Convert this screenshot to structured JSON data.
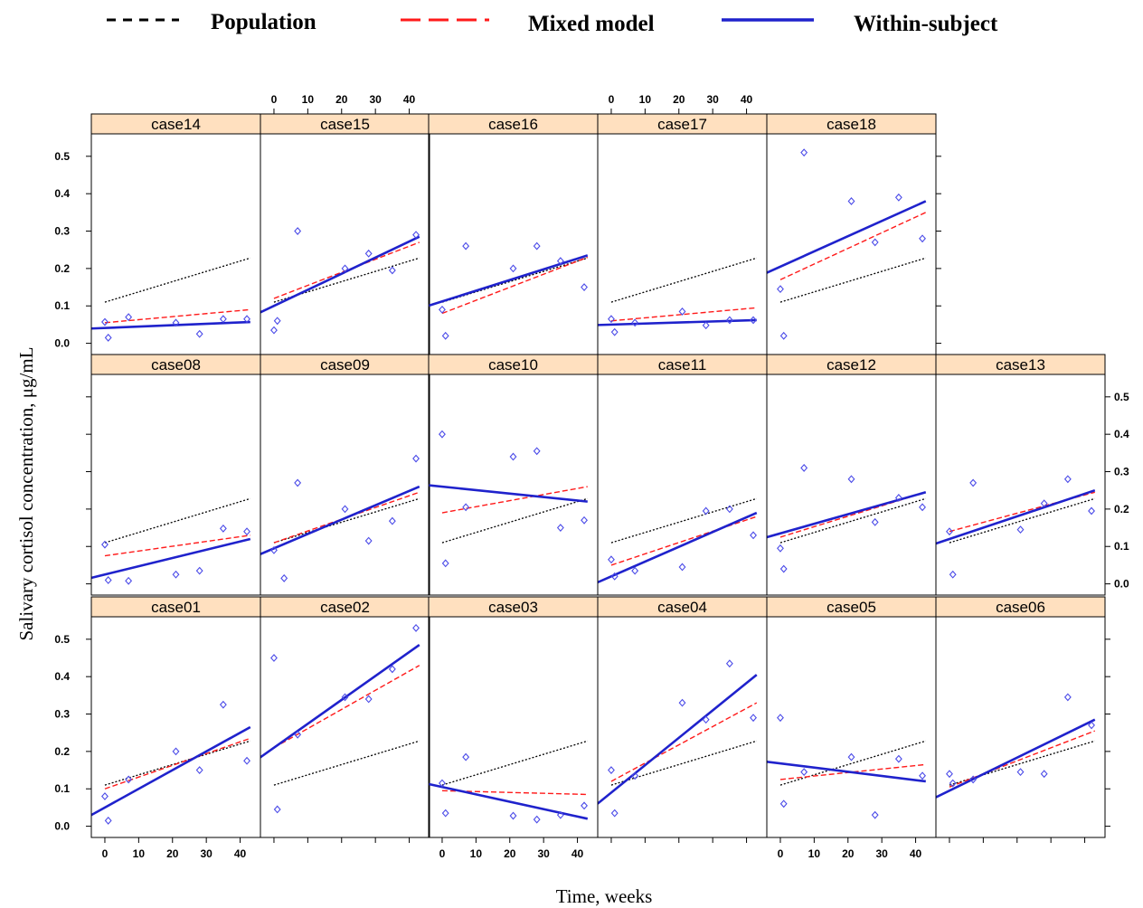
{
  "chart_data": {
    "type": "scatter",
    "layout": "lattice-panels",
    "xlabel": "Time, weeks",
    "ylabel": "Salivary cortisol concentration, μg/mL",
    "xlim": [
      -4,
      46
    ],
    "ylim": [
      -0.03,
      0.56
    ],
    "x_ticks": [
      0,
      10,
      20,
      30,
      40
    ],
    "y_ticks": [
      0.0,
      0.1,
      0.2,
      0.3,
      0.4,
      0.5
    ],
    "y_tick_labels": [
      "0.0",
      "0.1",
      "0.2",
      "0.3",
      "0.4",
      "0.5"
    ],
    "legend": {
      "placement": "top",
      "items": [
        {
          "label": "Population",
          "color": "#000000",
          "style": "short-dash",
          "text_color": "#000000"
        },
        {
          "label": "Mixed model",
          "color": "#ff1a1a",
          "style": "long-dash",
          "text_color": "#e8141b"
        },
        {
          "label": "Within-subject",
          "color": "#1f22cc",
          "style": "solid",
          "text_color": "#1a75c7"
        }
      ]
    },
    "colors": {
      "points": "#4a4ae8",
      "strip_fill": "#ffe0bf",
      "population": "#000000",
      "mixed": "#ff1a1a",
      "within": "#1f22cc"
    },
    "population_line": {
      "x": [
        0,
        43
      ],
      "y": [
        0.11,
        0.228
      ]
    },
    "panels": [
      {
        "name": "case14",
        "row": 0,
        "col": 0,
        "points": {
          "x": [
            0,
            1,
            7,
            21,
            28,
            35,
            42
          ],
          "y": [
            0.057,
            0.015,
            0.07,
            0.055,
            0.025,
            0.065,
            0.065
          ]
        },
        "mixed": [
          0.055,
          0.09
        ],
        "within": [
          0.041,
          0.057
        ]
      },
      {
        "name": "case15",
        "row": 0,
        "col": 1,
        "points": {
          "x": [
            0,
            1,
            7,
            21,
            28,
            35,
            42
          ],
          "y": [
            0.035,
            0.06,
            0.3,
            0.2,
            0.24,
            0.195,
            0.29
          ]
        },
        "mixed": [
          0.12,
          0.27
        ],
        "within": [
          0.1,
          0.285
        ]
      },
      {
        "name": "case16",
        "row": 0,
        "col": 2,
        "points": {
          "x": [
            0,
            1,
            7,
            21,
            28,
            35,
            42
          ],
          "y": [
            0.09,
            0.02,
            0.26,
            0.2,
            0.26,
            0.22,
            0.15
          ]
        },
        "mixed": [
          0.08,
          0.23
        ],
        "within": [
          0.112,
          0.235
        ]
      },
      {
        "name": "case17",
        "row": 0,
        "col": 3,
        "points": {
          "x": [
            0,
            1,
            7,
            21,
            28,
            35,
            42
          ],
          "y": [
            0.065,
            0.03,
            0.055,
            0.085,
            0.048,
            0.062,
            0.062
          ]
        },
        "mixed": [
          0.06,
          0.095
        ],
        "within": [
          0.05,
          0.062
        ]
      },
      {
        "name": "case18",
        "row": 0,
        "col": 4,
        "points": {
          "x": [
            0,
            1,
            7,
            21,
            28,
            35,
            42
          ],
          "y": [
            0.145,
            0.02,
            0.51,
            0.38,
            0.27,
            0.39,
            0.28
          ]
        },
        "mixed": [
          0.17,
          0.35
        ],
        "within": [
          0.205,
          0.38
        ]
      },
      {
        "name": "case08",
        "row": 1,
        "col": 0,
        "points": {
          "x": [
            0,
            1,
            7,
            21,
            28,
            35,
            42
          ],
          "y": [
            0.105,
            0.01,
            0.008,
            0.025,
            0.035,
            0.148,
            0.14
          ]
        },
        "mixed": [
          0.075,
          0.13
        ],
        "within": [
          0.025,
          0.12
        ]
      },
      {
        "name": "case09",
        "row": 1,
        "col": 1,
        "points": {
          "x": [
            0,
            3,
            7,
            21,
            28,
            35,
            42
          ],
          "y": [
            0.09,
            0.015,
            0.27,
            0.2,
            0.115,
            0.168,
            0.335
          ]
        },
        "mixed": [
          0.11,
          0.245
        ],
        "within": [
          0.095,
          0.26
        ]
      },
      {
        "name": "case10",
        "row": 1,
        "col": 2,
        "points": {
          "x": [
            0,
            1,
            7,
            21,
            28,
            35,
            42
          ],
          "y": [
            0.4,
            0.055,
            0.205,
            0.34,
            0.355,
            0.15,
            0.17
          ]
        },
        "mixed": [
          0.19,
          0.26
        ],
        "within": [
          0.26,
          0.22
        ]
      },
      {
        "name": "case11",
        "row": 1,
        "col": 3,
        "points": {
          "x": [
            0,
            1,
            7,
            21,
            28,
            35,
            42
          ],
          "y": [
            0.065,
            0.02,
            0.035,
            0.045,
            0.195,
            0.2,
            0.13
          ]
        },
        "mixed": [
          0.05,
          0.18
        ],
        "within": [
          0.02,
          0.19
        ]
      },
      {
        "name": "case12",
        "row": 1,
        "col": 4,
        "points": {
          "x": [
            0,
            1,
            7,
            21,
            28,
            35,
            42
          ],
          "y": [
            0.095,
            0.04,
            0.31,
            0.28,
            0.165,
            0.23,
            0.205
          ]
        },
        "mixed": [
          0.125,
          0.245
        ],
        "within": [
          0.135,
          0.245
        ]
      },
      {
        "name": "case13",
        "row": 1,
        "col": 5,
        "points": {
          "x": [
            0,
            1,
            7,
            21,
            28,
            35,
            42
          ],
          "y": [
            0.14,
            0.025,
            0.27,
            0.145,
            0.215,
            0.28,
            0.195
          ]
        },
        "mixed": [
          0.14,
          0.245
        ],
        "within": [
          0.12,
          0.25
        ]
      },
      {
        "name": "case01",
        "row": 2,
        "col": 0,
        "points": {
          "x": [
            0,
            1,
            7,
            21,
            28,
            35,
            42
          ],
          "y": [
            0.08,
            0.015,
            0.125,
            0.2,
            0.15,
            0.325,
            0.175
          ]
        },
        "mixed": [
          0.1,
          0.235
        ],
        "within": [
          0.05,
          0.265
        ]
      },
      {
        "name": "case02",
        "row": 2,
        "col": 1,
        "points": {
          "x": [
            0,
            1,
            7,
            21,
            28,
            35,
            42
          ],
          "y": [
            0.45,
            0.045,
            0.245,
            0.345,
            0.34,
            0.42,
            0.53
          ]
        },
        "mixed": [
          0.21,
          0.43
        ],
        "within": [
          0.21,
          0.485
        ]
      },
      {
        "name": "case03",
        "row": 2,
        "col": 2,
        "points": {
          "x": [
            0,
            1,
            7,
            21,
            28,
            35,
            42
          ],
          "y": [
            0.115,
            0.035,
            0.185,
            0.028,
            0.018,
            0.03,
            0.055
          ]
        },
        "mixed": [
          0.095,
          0.085
        ],
        "within": [
          0.105,
          0.02
        ]
      },
      {
        "name": "case04",
        "row": 2,
        "col": 3,
        "points": {
          "x": [
            0,
            1,
            7,
            21,
            28,
            35,
            42
          ],
          "y": [
            0.15,
            0.035,
            0.135,
            0.33,
            0.285,
            0.435,
            0.29
          ]
        },
        "mixed": [
          0.12,
          0.33
        ],
        "within": [
          0.09,
          0.405
        ]
      },
      {
        "name": "case05",
        "row": 2,
        "col": 4,
        "points": {
          "x": [
            0,
            1,
            7,
            21,
            28,
            35,
            42
          ],
          "y": [
            0.29,
            0.06,
            0.145,
            0.185,
            0.03,
            0.18,
            0.135
          ]
        },
        "mixed": [
          0.125,
          0.165
        ],
        "within": [
          0.168,
          0.12
        ]
      },
      {
        "name": "case06",
        "row": 2,
        "col": 5,
        "points": {
          "x": [
            0,
            1,
            7,
            21,
            28,
            35,
            42
          ],
          "y": [
            0.14,
            0.115,
            0.125,
            0.145,
            0.14,
            0.345,
            0.27
          ]
        },
        "mixed": [
          0.105,
          0.255
        ],
        "within": [
          0.095,
          0.285
        ]
      }
    ]
  }
}
